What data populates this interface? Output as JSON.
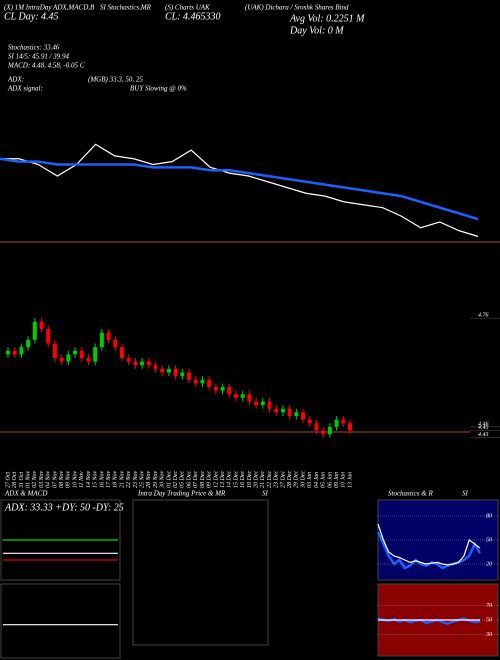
{
  "header": {
    "col1": [
      "(X) 1M IntraDay ADX,MACD,B",
      "CL Day: 4.45"
    ],
    "col2": "SI Stochastics,MR",
    "col3": [
      "(S) Charts UAK",
      "CL: 4.465330"
    ],
    "col4": "(UAK) Dichara / Sroshk Shares Bind",
    "vol": [
      "Avg Vol: 0.2251 M",
      "Day Vol: 0 M"
    ],
    "lines": [
      "Stochastics: 33.46",
      "SI 14/5: 45.91 / 39.94",
      "MACD: 4.48, 4.58, -0.05 C"
    ],
    "adx": [
      "ADX:",
      "(MGB) 33.3, 50, 25",
      "ADX signal:",
      "BUY Slowing @ 0%"
    ],
    "panels": [
      "ADX & MACD",
      "Intra Day Trading Price & MR",
      "SI",
      "Stochastics & R",
      "SI"
    ],
    "adx_box": "ADX: 33.33 +DY: 50 -DY: 25"
  },
  "chart_data": [
    {
      "type": "line",
      "ylim": [
        4.38,
        4.78
      ],
      "series": [
        {
          "color": "#ffffff",
          "values": [
            4.68,
            4.68,
            4.66,
            4.62,
            4.66,
            4.73,
            4.69,
            4.68,
            4.66,
            4.67,
            4.71,
            4.65,
            4.63,
            4.62,
            4.6,
            4.58,
            4.56,
            4.55,
            4.53,
            4.52,
            4.51,
            4.48,
            4.44,
            4.46,
            4.43,
            4.41
          ]
        },
        {
          "color": "#1f5fff",
          "values": [
            4.68,
            4.67,
            4.67,
            4.66,
            4.66,
            4.66,
            4.66,
            4.66,
            4.65,
            4.65,
            4.65,
            4.64,
            4.64,
            4.63,
            4.62,
            4.61,
            4.6,
            4.59,
            4.58,
            4.57,
            4.56,
            4.55,
            4.53,
            4.51,
            4.49,
            4.47
          ]
        }
      ]
    },
    {
      "type": "candlestick",
      "ylim": [
        4.41,
        4.81
      ],
      "yticks": [
        4.76,
        4.46,
        4.45,
        4.43
      ],
      "up_color": "#00cc00",
      "down_color": "#ff0000",
      "categories": [
        "27 Oct",
        "28 Oct",
        "31 Oct",
        "01 Nov",
        "02 Nov",
        "03 Nov",
        "04 Nov",
        "07 Nov",
        "08 Nov",
        "09 Nov",
        "10 Nov",
        "11 Nov",
        "14 Nov",
        "15 Nov",
        "16 Nov",
        "17 Nov",
        "18 Nov",
        "21 Nov",
        "22 Nov",
        "23 Nov",
        "25 Nov",
        "28 Nov",
        "29 Nov",
        "30 Nov",
        "01 Dec",
        "02 Dec",
        "05 Dec",
        "06 Dec",
        "07 Dec",
        "08 Dec",
        "09 Dec",
        "12 Dec",
        "13 Dec",
        "14 Dec",
        "15 Dec",
        "16 Dec",
        "19 Dec",
        "20 Dec",
        "21 Dec",
        "22 Dec",
        "23 Dec",
        "27 Dec",
        "28 Dec",
        "29 Dec",
        "30 Dec",
        "03 Jan",
        "04 Jan",
        "05 Jan",
        "06 Jan",
        "09 Jan",
        "10 Jan",
        "13 Jan"
      ],
      "open": [
        4.66,
        4.67,
        4.66,
        4.68,
        4.7,
        4.75,
        4.73,
        4.69,
        4.65,
        4.64,
        4.66,
        4.67,
        4.65,
        4.64,
        4.68,
        4.72,
        4.7,
        4.68,
        4.65,
        4.64,
        4.63,
        4.64,
        4.63,
        4.62,
        4.61,
        4.62,
        4.6,
        4.61,
        4.59,
        4.58,
        4.59,
        4.57,
        4.56,
        4.57,
        4.55,
        4.54,
        4.55,
        4.53,
        4.52,
        4.53,
        4.51,
        4.5,
        4.51,
        4.49,
        4.5,
        4.48,
        4.47,
        4.45,
        4.44,
        4.46,
        4.48,
        4.47
      ],
      "high": [
        4.68,
        4.68,
        4.69,
        4.71,
        4.76,
        4.76,
        4.74,
        4.7,
        4.66,
        4.67,
        4.68,
        4.68,
        4.66,
        4.69,
        4.73,
        4.73,
        4.71,
        4.69,
        4.66,
        4.65,
        4.65,
        4.65,
        4.64,
        4.63,
        4.63,
        4.63,
        4.62,
        4.62,
        4.6,
        4.6,
        4.6,
        4.58,
        4.58,
        4.58,
        4.56,
        4.56,
        4.56,
        4.54,
        4.54,
        4.54,
        4.52,
        4.52,
        4.52,
        4.51,
        4.51,
        4.49,
        4.48,
        4.46,
        4.47,
        4.49,
        4.49,
        4.48
      ],
      "low": [
        4.65,
        4.65,
        4.65,
        4.67,
        4.69,
        4.72,
        4.68,
        4.64,
        4.63,
        4.63,
        4.65,
        4.64,
        4.63,
        4.63,
        4.67,
        4.69,
        4.67,
        4.64,
        4.63,
        4.62,
        4.62,
        4.62,
        4.61,
        4.6,
        4.6,
        4.59,
        4.59,
        4.58,
        4.57,
        4.57,
        4.56,
        4.55,
        4.55,
        4.54,
        4.53,
        4.53,
        4.52,
        4.51,
        4.51,
        4.5,
        4.49,
        4.49,
        4.48,
        4.48,
        4.47,
        4.46,
        4.44,
        4.43,
        4.43,
        4.45,
        4.46,
        4.44
      ],
      "close": [
        4.67,
        4.66,
        4.68,
        4.7,
        4.75,
        4.73,
        4.69,
        4.65,
        4.64,
        4.66,
        4.67,
        4.65,
        4.64,
        4.68,
        4.72,
        4.7,
        4.68,
        4.65,
        4.64,
        4.63,
        4.64,
        4.63,
        4.62,
        4.61,
        4.62,
        4.6,
        4.61,
        4.59,
        4.58,
        4.59,
        4.57,
        4.56,
        4.57,
        4.55,
        4.54,
        4.55,
        4.53,
        4.52,
        4.53,
        4.51,
        4.5,
        4.51,
        4.49,
        4.5,
        4.48,
        4.47,
        4.45,
        4.44,
        4.46,
        4.48,
        4.47,
        4.45
      ]
    },
    {
      "type": "line",
      "ylim": [
        0,
        100
      ],
      "series": [
        {
          "color": "#00dd00",
          "values": [
            50,
            50
          ]
        },
        {
          "color": "#ffffff",
          "values": [
            33.33,
            33.33
          ]
        },
        {
          "color": "#dd0000",
          "values": [
            25,
            25
          ]
        }
      ]
    },
    {
      "type": "line",
      "ylim": [
        -0.5,
        0.5
      ],
      "series": [
        {
          "color": "#ffffff",
          "values": [
            -0.05,
            -0.05
          ]
        }
      ]
    },
    {
      "type": "line",
      "ylim": [
        0,
        100
      ],
      "yticks": [
        80,
        50,
        20
      ],
      "series": [
        {
          "color": "#1f5fff",
          "values": [
            60,
            45,
            30,
            20,
            25,
            15,
            18,
            25,
            20,
            18,
            22,
            20,
            15,
            18,
            20,
            22,
            25,
            30,
            45,
            33.46
          ]
        },
        {
          "color": "#ffffff",
          "values": [
            70,
            50,
            35,
            30,
            28,
            25,
            22,
            24,
            22,
            20,
            21,
            22,
            20,
            19,
            20,
            22,
            30,
            50,
            45,
            39.94
          ]
        }
      ]
    },
    {
      "type": "line",
      "ylim": [
        0,
        100
      ],
      "yticks": [
        70,
        50,
        30
      ],
      "series": [
        {
          "color": "#1f5fff",
          "values": [
            52,
            50,
            49,
            51,
            48,
            50,
            47,
            49,
            50,
            46,
            48,
            50,
            47,
            45,
            48,
            50,
            52,
            49,
            47,
            48
          ]
        },
        {
          "color": "#ffffff",
          "values": [
            50,
            50,
            50,
            50,
            50,
            50,
            50,
            50,
            50,
            50,
            50,
            50,
            50,
            50,
            50,
            50,
            50,
            50,
            50,
            50
          ]
        }
      ]
    }
  ]
}
